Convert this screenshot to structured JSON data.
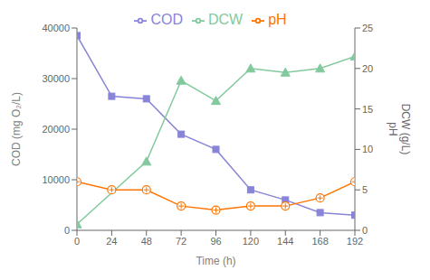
{
  "chart_data": {
    "type": "line",
    "xlabel": "Time (h)",
    "ylabel": "COD (mg O₂/L)",
    "y2label": "DCW (g/L)\npH",
    "xlim": [
      0,
      192
    ],
    "xticks": [
      0,
      24,
      48,
      72,
      96,
      120,
      144,
      168,
      192
    ],
    "ylim": [
      0,
      40000
    ],
    "yticks": [
      0,
      10000,
      20000,
      30000,
      40000
    ],
    "y2lim": [
      0,
      25
    ],
    "y2ticks": [
      0,
      5,
      10,
      15,
      20,
      25
    ],
    "grid": false,
    "legend": "top",
    "series": [
      {
        "name": "COD",
        "axis": "y",
        "x": [
          0,
          24,
          48,
          72,
          96,
          120,
          144,
          168,
          192
        ],
        "values": [
          38500,
          26500,
          26000,
          19000,
          16000,
          8000,
          6000,
          3500,
          3000
        ],
        "color": "#8884d8",
        "marker": "square",
        "line_style": "solid"
      },
      {
        "name": "DCW",
        "axis": "y2",
        "x": [
          0,
          48,
          72,
          96,
          120,
          144,
          168,
          192
        ],
        "values": [
          0.75,
          8.5,
          18.5,
          16.0,
          20.0,
          19.5,
          20.0,
          21.5
        ],
        "color": "#82ca9d",
        "marker": "triangle",
        "line_style": "solid"
      },
      {
        "name": "pH",
        "axis": "y2",
        "x": [
          0,
          24,
          48,
          72,
          96,
          120,
          144,
          168,
          192
        ],
        "values": [
          6.0,
          5.0,
          5.0,
          3.0,
          2.5,
          3.0,
          3.0,
          4.0,
          6.0
        ],
        "color": "#ff7300",
        "marker": "circled_plus",
        "line_style": "solid"
      }
    ]
  }
}
